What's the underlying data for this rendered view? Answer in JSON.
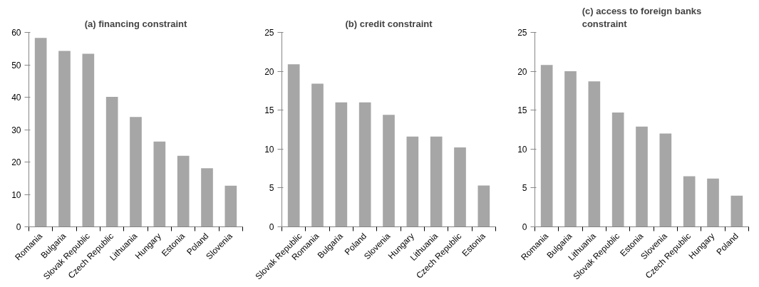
{
  "chart_data": [
    {
      "type": "bar",
      "title": "(a) financing constraint",
      "categories": [
        "Romania",
        "Bulgaria",
        "Slovak Republic",
        "Czech Republic",
        "Lithuania",
        "Hungary",
        "Estonia",
        "Poland",
        "Slovenia"
      ],
      "values": [
        58.3,
        54.3,
        53.4,
        40.1,
        33.9,
        26.3,
        21.9,
        18.1,
        12.7
      ],
      "color": "#a6a6a6",
      "ylim": [
        0,
        60
      ],
      "yticks": [
        0,
        10,
        20,
        30,
        40,
        50,
        60
      ],
      "grid": false
    },
    {
      "type": "bar",
      "title": "(b) credit constraint",
      "categories": [
        "Slovak Republic",
        "Romania",
        "Bulgaria",
        "Poland",
        "Slovenia",
        "Hungary",
        "Lithuania",
        "Czech Republic",
        "Estonia"
      ],
      "values": [
        20.9,
        18.4,
        16.0,
        16.0,
        14.4,
        11.6,
        11.6,
        10.2,
        5.3
      ],
      "color": "#a6a6a6",
      "ylim": [
        0,
        25
      ],
      "yticks": [
        0,
        5,
        10,
        15,
        20,
        25
      ],
      "grid": false
    },
    {
      "type": "bar",
      "title": "(c) access to foreign banks constraint",
      "categories": [
        "Romania",
        "Bulgaria",
        "Lithuania",
        "Slovak Republic",
        "Estonia",
        "Slovenia",
        "Czech Republic",
        "Hungary",
        "Poland"
      ],
      "values": [
        20.8,
        20.0,
        18.7,
        14.7,
        12.9,
        12.0,
        6.5,
        6.2,
        4.0
      ],
      "color": "#a6a6a6",
      "ylim": [
        0,
        25
      ],
      "yticks": [
        0,
        5,
        10,
        15,
        20,
        25
      ],
      "grid": false
    }
  ]
}
